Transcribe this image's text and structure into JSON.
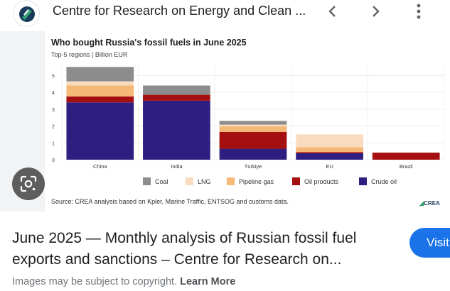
{
  "header": {
    "title": "Centre for Research on Energy and Clean ...",
    "icons": {
      "prev": "chevron-left-icon",
      "next": "chevron-right-icon",
      "more": "more-vert-icon"
    }
  },
  "chart": {
    "title": "Who bought Russia's fossil fuels in June 2025",
    "subtitle": "Top-5 regions | Billion EUR",
    "source": "Source: CREA analysis based on Kpler, Marine Traffic, ENTSOG and customs data.",
    "logo_text": "CREA"
  },
  "chart_data": {
    "type": "bar",
    "stacked": true,
    "title": "Who bought Russia's fossil fuels in June 2025",
    "subtitle": "Top-5 regions | Billion EUR",
    "categories": [
      "China",
      "India",
      "Türkiye",
      "EU",
      "Brazil"
    ],
    "series": [
      {
        "name": "Crude oil",
        "color": "#2d1e80",
        "values": [
          3.4,
          3.5,
          0.65,
          0.38,
          0
        ]
      },
      {
        "name": "Oil products",
        "color": "#a50f0f",
        "values": [
          0.35,
          0.35,
          1.0,
          0.07,
          0.42
        ]
      },
      {
        "name": "Pipeline gas",
        "color": "#f4b877",
        "values": [
          0.65,
          0,
          0.33,
          0.3,
          0
        ]
      },
      {
        "name": "LNG",
        "color": "#f9dcc0",
        "values": [
          0.25,
          0,
          0.1,
          0.75,
          0
        ]
      },
      {
        "name": "Coal",
        "color": "#8c8c8c",
        "values": [
          0.85,
          0.55,
          0.22,
          0,
          0
        ]
      }
    ],
    "legend": [
      "Coal",
      "LNG",
      "Pipeline gas",
      "Oil products",
      "Crude oil"
    ],
    "yticks": [
      0,
      1,
      2,
      3,
      4,
      5
    ],
    "ylim": [
      0,
      5.6
    ],
    "legend_position": "bottom",
    "grid": true
  },
  "result": {
    "title_line1": "June 2025 — Monthly analysis of Russian fossil fuel",
    "title_line2": "exports and sanctions – Centre for Research on...",
    "visit_label": "Visit",
    "copyright": "Images may be subject to copyright.",
    "learn_more": "Learn More"
  }
}
